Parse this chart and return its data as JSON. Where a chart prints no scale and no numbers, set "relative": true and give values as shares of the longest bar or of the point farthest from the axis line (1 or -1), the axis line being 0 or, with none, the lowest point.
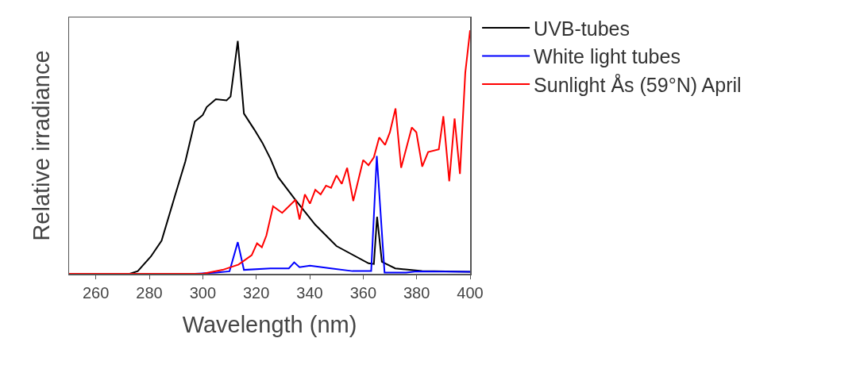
{
  "chart_data": {
    "type": "line",
    "relative": true,
    "xlabel": "Wavelength (nm)",
    "ylabel": "Relative irradiance",
    "xlim": [
      250,
      400
    ],
    "xticks": [
      260,
      280,
      300,
      320,
      340,
      360,
      380,
      400
    ],
    "grid": false,
    "legend": "right",
    "series": [
      {
        "name": "UVB-tubes",
        "color": "#000000",
        "x": [
          250,
          272.7,
          275.7,
          280.6,
          284.6,
          289.6,
          293.5,
          297,
          300,
          301.5,
          304.9,
          308.9,
          310.4,
          313.1,
          315.4,
          319.3,
          322.3,
          325.3,
          328.2,
          334.2,
          342.1,
          350,
          362,
          364,
          365.2,
          367,
          372,
          382,
          400
        ],
        "values": [
          0,
          0,
          0.011,
          0.071,
          0.136,
          0.32,
          0.462,
          0.625,
          0.652,
          0.685,
          0.717,
          0.712,
          0.728,
          0.956,
          0.658,
          0.592,
          0.538,
          0.473,
          0.397,
          0.31,
          0.201,
          0.114,
          0.043,
          0.04,
          0.234,
          0.049,
          0.022,
          0.011,
          0.008
        ]
      },
      {
        "name": "White light tubes",
        "color": "#0000ff",
        "x": [
          250,
          297,
          305,
          310,
          313.1,
          315.4,
          325.3,
          332.2,
          334.2,
          336.2,
          340.1,
          348,
          356,
          363,
          365.1,
          368,
          376,
          380,
          400
        ],
        "values": [
          0,
          0,
          0.005,
          0.01,
          0.13,
          0.016,
          0.022,
          0.022,
          0.047,
          0.027,
          0.033,
          0.022,
          0.011,
          0.011,
          0.484,
          0.005,
          0.005,
          0.01,
          0.008
        ]
      },
      {
        "name": "Sunlight Ås (59°N) April",
        "color": "#ff0000",
        "x": [
          250,
          300,
          307.4,
          313.4,
          318.3,
          320.3,
          322.1,
          323.8,
          326.3,
          329.7,
          334.7,
          336.2,
          338.2,
          340.1,
          342.1,
          344.1,
          346.1,
          348,
          350,
          352,
          354,
          356.3,
          360,
          362,
          364,
          366,
          368.2,
          370,
          372.1,
          374.2,
          378.2,
          379.9,
          382.1,
          384.3,
          388.3,
          390,
          392.2,
          394.2,
          396.2,
          398.2,
          400
        ],
        "values": [
          0,
          0,
          0.016,
          0.038,
          0.076,
          0.125,
          0.109,
          0.157,
          0.277,
          0.25,
          0.304,
          0.223,
          0.326,
          0.288,
          0.345,
          0.326,
          0.362,
          0.353,
          0.404,
          0.369,
          0.435,
          0.299,
          0.467,
          0.446,
          0.478,
          0.56,
          0.529,
          0.581,
          0.679,
          0.435,
          0.601,
          0.581,
          0.44,
          0.5,
          0.511,
          0.647,
          0.38,
          0.638,
          0.41,
          0.826,
          1
        ]
      }
    ]
  }
}
